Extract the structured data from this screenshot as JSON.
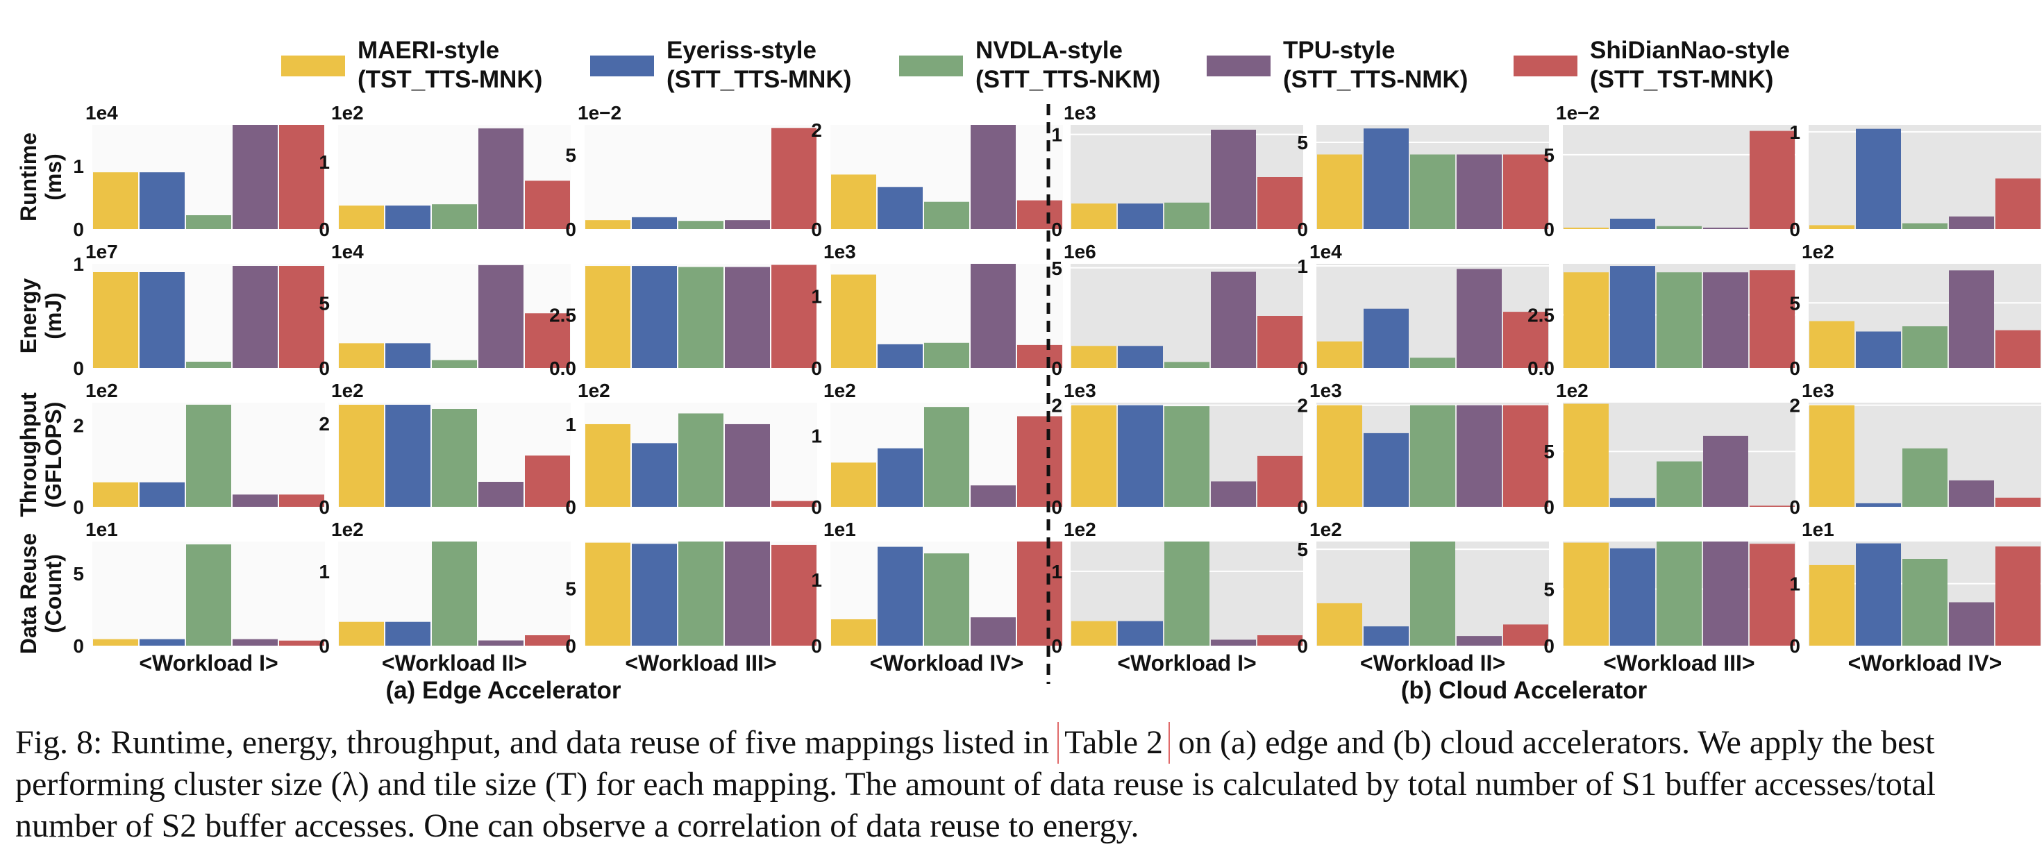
{
  "legend": [
    {
      "name": "MAERI-style",
      "sub": "(TST_TTS-MNK)",
      "color": "#ecc246"
    },
    {
      "name": "Eyeriss-style",
      "sub": "(STT_TTS-MNK)",
      "color": "#4b6aa8"
    },
    {
      "name": "NVDLA-style",
      "sub": "(STT_TTS-NKM)",
      "color": "#7ea77b"
    },
    {
      "name": "TPU-style",
      "sub": "(STT_TTS-NMK)",
      "color": "#7d6084"
    },
    {
      "name": "ShiDianNao-style",
      "sub": "(STT_TST-MNK)",
      "color": "#c45a5a"
    }
  ],
  "row_labels": [
    [
      "Runtime",
      "(ms)"
    ],
    [
      "Energy",
      "(mJ)"
    ],
    [
      "Throughput",
      "(GFLOPS)"
    ],
    [
      "Data Reuse",
      "(Count)"
    ]
  ],
  "workloads": [
    "<Workload I>",
    "<Workload II>",
    "<Workload III>",
    "<Workload IV>"
  ],
  "sections": [
    "(a) Edge Accelerator",
    "(b) Cloud Accelerator"
  ],
  "caption": {
    "before": "Fig. 8: Runtime, energy, throughput, and data reuse of five mappings listed in ",
    "ref": "Table 2",
    "after": " on (a) edge and (b) cloud accelerators. We apply the best performing cluster size (λ) and tile size (T) for each mapping. The amount of data reuse is calculated by total number of S1 buffer accesses/total number of S2 buffer accesses. One can observe a correlation of data reuse to energy."
  },
  "chart_data": [
    {
      "type": "bar",
      "section": "Edge",
      "metric": "Runtime (ms)",
      "workload": "<Workload I>",
      "exponent": "1e4",
      "ylim": [
        0,
        1.65
      ],
      "ticks": [
        {
          "v": 0,
          "l": "0"
        },
        {
          "v": 1,
          "l": "1"
        }
      ],
      "values": [
        0.9,
        0.9,
        0.22,
        1.65,
        1.65
      ]
    },
    {
      "type": "bar",
      "section": "Edge",
      "metric": "Runtime (ms)",
      "workload": "<Workload II>",
      "exponent": "1e2",
      "ylim": [
        0,
        1.55
      ],
      "ticks": [
        {
          "v": 0,
          "l": "0"
        },
        {
          "v": 1,
          "l": "1"
        }
      ],
      "values": [
        0.35,
        0.35,
        0.37,
        1.5,
        0.72
      ]
    },
    {
      "type": "bar",
      "section": "Edge",
      "metric": "Runtime (ms)",
      "workload": "<Workload III>",
      "exponent": "1e−2",
      "ylim": [
        0,
        7
      ],
      "ticks": [
        {
          "v": 0,
          "l": "0"
        },
        {
          "v": 5,
          "l": "5"
        }
      ],
      "values": [
        0.6,
        0.8,
        0.55,
        0.6,
        6.8
      ]
    },
    {
      "type": "bar",
      "section": "Edge",
      "metric": "Runtime (ms)",
      "workload": "<Workload IV>",
      "exponent": "",
      "ylim": [
        0,
        2.1
      ],
      "ticks": [
        {
          "v": 0,
          "l": "0"
        },
        {
          "v": 2,
          "l": "2"
        }
      ],
      "values": [
        1.1,
        0.85,
        0.55,
        2.1,
        0.58
      ]
    },
    {
      "type": "bar",
      "section": "Cloud",
      "metric": "Runtime (ms)",
      "workload": "<Workload I>",
      "exponent": "1e3",
      "ylim": [
        0,
        1.1
      ],
      "ticks": [
        {
          "v": 0,
          "l": "0"
        },
        {
          "v": 1,
          "l": "1"
        }
      ],
      "values": [
        0.27,
        0.27,
        0.28,
        1.05,
        0.55
      ]
    },
    {
      "type": "bar",
      "section": "Cloud",
      "metric": "Runtime (ms)",
      "workload": "<Workload II>",
      "exponent": "",
      "ylim": [
        0,
        6
      ],
      "ticks": [
        {
          "v": 0,
          "l": "0"
        },
        {
          "v": 5,
          "l": "5"
        }
      ],
      "values": [
        4.3,
        5.8,
        4.3,
        4.3,
        4.3
      ]
    },
    {
      "type": "bar",
      "section": "Cloud",
      "metric": "Runtime (ms)",
      "workload": "<Workload III>",
      "exponent": "1e−2",
      "ylim": [
        0,
        7
      ],
      "ticks": [
        {
          "v": 0,
          "l": "0"
        },
        {
          "v": 5,
          "l": "5"
        }
      ],
      "values": [
        0.1,
        0.7,
        0.2,
        0.1,
        6.6
      ]
    },
    {
      "type": "bar",
      "section": "Cloud",
      "metric": "Runtime (ms)",
      "workload": "<Workload IV>",
      "exponent": "",
      "ylim": [
        0,
        1.07
      ],
      "ticks": [
        {
          "v": 0,
          "l": "0"
        },
        {
          "v": 1,
          "l": "1"
        }
      ],
      "values": [
        0.04,
        1.03,
        0.06,
        0.13,
        0.52
      ]
    },
    {
      "type": "bar",
      "section": "Edge",
      "metric": "Energy (mJ)",
      "workload": "<Workload I>",
      "exponent": "1e7",
      "ylim": [
        0,
        1.0
      ],
      "ticks": [
        {
          "v": 0,
          "l": "0"
        },
        {
          "v": 1,
          "l": "1"
        }
      ],
      "values": [
        0.92,
        0.92,
        0.06,
        0.98,
        0.98
      ]
    },
    {
      "type": "bar",
      "section": "Edge",
      "metric": "Energy (mJ)",
      "workload": "<Workload II>",
      "exponent": "1e4",
      "ylim": [
        0,
        8
      ],
      "ticks": [
        {
          "v": 0,
          "l": "0"
        },
        {
          "v": 5,
          "l": "5"
        }
      ],
      "values": [
        1.9,
        1.9,
        0.6,
        7.9,
        4.2
      ]
    },
    {
      "type": "bar",
      "section": "Edge",
      "metric": "Energy (mJ)",
      "workload": "<Workload III>",
      "exponent": "",
      "ylim": [
        0,
        4.9
      ],
      "ticks": [
        {
          "v": 0,
          "l": "0.0"
        },
        {
          "v": 2.5,
          "l": "2.5"
        }
      ],
      "values": [
        4.8,
        4.8,
        4.75,
        4.75,
        4.85
      ]
    },
    {
      "type": "bar",
      "section": "Edge",
      "metric": "Energy (mJ)",
      "workload": "<Workload IV>",
      "exponent": "1e3",
      "ylim": [
        0,
        1.45
      ],
      "ticks": [
        {
          "v": 0,
          "l": "0"
        },
        {
          "v": 1,
          "l": "1"
        }
      ],
      "values": [
        1.3,
        0.33,
        0.35,
        1.45,
        0.32
      ]
    },
    {
      "type": "bar",
      "section": "Cloud",
      "metric": "Energy (mJ)",
      "workload": "<Workload I>",
      "exponent": "1e6",
      "ylim": [
        0,
        5.2
      ],
      "ticks": [
        {
          "v": 0,
          "l": "0"
        },
        {
          "v": 5,
          "l": "5"
        }
      ],
      "values": [
        1.1,
        1.1,
        0.3,
        4.8,
        2.6
      ]
    },
    {
      "type": "bar",
      "section": "Cloud",
      "metric": "Energy (mJ)",
      "workload": "<Workload II>",
      "exponent": "1e4",
      "ylim": [
        0,
        1.02
      ],
      "ticks": [
        {
          "v": 0,
          "l": "0"
        },
        {
          "v": 1,
          "l": "1"
        }
      ],
      "values": [
        0.26,
        0.58,
        0.1,
        0.97,
        0.55
      ]
    },
    {
      "type": "bar",
      "section": "Cloud",
      "metric": "Energy (mJ)",
      "workload": "<Workload III>",
      "exponent": "",
      "ylim": [
        0,
        4.9
      ],
      "ticks": [
        {
          "v": 0,
          "l": "0.0"
        },
        {
          "v": 2.5,
          "l": "2.5"
        }
      ],
      "values": [
        4.5,
        4.8,
        4.5,
        4.5,
        4.6
      ]
    },
    {
      "type": "bar",
      "section": "Cloud",
      "metric": "Energy (mJ)",
      "workload": "<Workload IV>",
      "exponent": "1e2",
      "ylim": [
        0,
        8
      ],
      "ticks": [
        {
          "v": 0,
          "l": "0"
        },
        {
          "v": 5,
          "l": "5"
        }
      ],
      "values": [
        3.6,
        2.8,
        3.2,
        7.5,
        2.9
      ]
    },
    {
      "type": "bar",
      "section": "Edge",
      "metric": "Throughput (GFLOPS)",
      "workload": "<Workload I>",
      "exponent": "1e2",
      "ylim": [
        0,
        2.55
      ],
      "ticks": [
        {
          "v": 0,
          "l": "0"
        },
        {
          "v": 2,
          "l": "2"
        }
      ],
      "values": [
        0.6,
        0.6,
        2.5,
        0.3,
        0.3
      ]
    },
    {
      "type": "bar",
      "section": "Edge",
      "metric": "Throughput (GFLOPS)",
      "workload": "<Workload II>",
      "exponent": "1e2",
      "ylim": [
        0,
        2.5
      ],
      "ticks": [
        {
          "v": 0,
          "l": "0"
        },
        {
          "v": 2,
          "l": "2"
        }
      ],
      "values": [
        2.45,
        2.45,
        2.35,
        0.6,
        1.23
      ]
    },
    {
      "type": "bar",
      "section": "Edge",
      "metric": "Throughput (GFLOPS)",
      "workload": "<Workload III>",
      "exponent": "1e2",
      "ylim": [
        0,
        1.26
      ],
      "ticks": [
        {
          "v": 0,
          "l": "0"
        },
        {
          "v": 1,
          "l": "1"
        }
      ],
      "values": [
        1.0,
        0.77,
        1.13,
        1.0,
        0.07
      ]
    },
    {
      "type": "bar",
      "section": "Edge",
      "metric": "Throughput (GFLOPS)",
      "workload": "<Workload IV>",
      "exponent": "1e2",
      "ylim": [
        0,
        1.46
      ],
      "ticks": [
        {
          "v": 0,
          "l": "0"
        },
        {
          "v": 1,
          "l": "1"
        }
      ],
      "values": [
        0.62,
        0.82,
        1.4,
        0.3,
        1.27
      ]
    },
    {
      "type": "bar",
      "section": "Cloud",
      "metric": "Throughput (GFLOPS)",
      "workload": "<Workload I>",
      "exponent": "1e3",
      "ylim": [
        0,
        2.05
      ],
      "ticks": [
        {
          "v": 0,
          "l": "0"
        },
        {
          "v": 2,
          "l": "2"
        }
      ],
      "values": [
        2.0,
        2.0,
        1.98,
        0.5,
        1.0
      ]
    },
    {
      "type": "bar",
      "section": "Cloud",
      "metric": "Throughput (GFLOPS)",
      "workload": "<Workload II>",
      "exponent": "1e3",
      "ylim": [
        0,
        2.05
      ],
      "ticks": [
        {
          "v": 0,
          "l": "0"
        },
        {
          "v": 2,
          "l": "2"
        }
      ],
      "values": [
        2.0,
        1.45,
        2.0,
        2.0,
        2.0
      ]
    },
    {
      "type": "bar",
      "section": "Cloud",
      "metric": "Throughput (GFLOPS)",
      "workload": "<Workload III>",
      "exponent": "1e2",
      "ylim": [
        0,
        9.4
      ],
      "ticks": [
        {
          "v": 0,
          "l": "0"
        },
        {
          "v": 5,
          "l": "5"
        }
      ],
      "values": [
        9.3,
        0.8,
        4.1,
        6.4,
        0.1
      ]
    },
    {
      "type": "bar",
      "section": "Cloud",
      "metric": "Throughput (GFLOPS)",
      "workload": "<Workload IV>",
      "exponent": "1e3",
      "ylim": [
        0,
        2.05
      ],
      "ticks": [
        {
          "v": 0,
          "l": "0"
        },
        {
          "v": 2,
          "l": "2"
        }
      ],
      "values": [
        2.0,
        0.07,
        1.15,
        0.52,
        0.18
      ]
    },
    {
      "type": "bar",
      "section": "Edge",
      "metric": "Data Reuse (Count)",
      "workload": "<Workload I>",
      "exponent": "1e1",
      "ylim": [
        0,
        7.2
      ],
      "ticks": [
        {
          "v": 0,
          "l": "0"
        },
        {
          "v": 5,
          "l": "5"
        }
      ],
      "values": [
        0.45,
        0.45,
        7.0,
        0.45,
        0.35
      ]
    },
    {
      "type": "bar",
      "section": "Edge",
      "metric": "Data Reuse (Count)",
      "workload": "<Workload II>",
      "exponent": "1e2",
      "ylim": [
        0,
        1.4
      ],
      "ticks": [
        {
          "v": 0,
          "l": "0"
        },
        {
          "v": 1,
          "l": "1"
        }
      ],
      "values": [
        0.32,
        0.32,
        1.4,
        0.07,
        0.14
      ]
    },
    {
      "type": "bar",
      "section": "Edge",
      "metric": "Data Reuse (Count)",
      "workload": "<Workload III>",
      "exponent": "",
      "ylim": [
        0,
        9.1
      ],
      "ticks": [
        {
          "v": 0,
          "l": "0"
        },
        {
          "v": 5,
          "l": "5"
        }
      ],
      "values": [
        9.0,
        8.9,
        9.1,
        9.1,
        8.8
      ]
    },
    {
      "type": "bar",
      "section": "Edge",
      "metric": "Data Reuse (Count)",
      "workload": "<Workload IV>",
      "exponent": "1e1",
      "ylim": [
        0,
        1.58
      ],
      "ticks": [
        {
          "v": 0,
          "l": "0"
        },
        {
          "v": 1,
          "l": "1"
        }
      ],
      "values": [
        0.4,
        1.5,
        1.4,
        0.43,
        1.58
      ]
    },
    {
      "type": "bar",
      "section": "Cloud",
      "metric": "Data Reuse (Count)",
      "workload": "<Workload I>",
      "exponent": "1e2",
      "ylim": [
        0,
        1.4
      ],
      "ticks": [
        {
          "v": 0,
          "l": "0"
        },
        {
          "v": 1,
          "l": "1"
        }
      ],
      "values": [
        0.33,
        0.33,
        1.4,
        0.08,
        0.14
      ]
    },
    {
      "type": "bar",
      "section": "Cloud",
      "metric": "Data Reuse (Count)",
      "workload": "<Workload II>",
      "exponent": "1e2",
      "ylim": [
        0,
        5.4
      ],
      "ticks": [
        {
          "v": 0,
          "l": "0"
        },
        {
          "v": 5,
          "l": "5"
        }
      ],
      "values": [
        2.2,
        1.0,
        5.4,
        0.5,
        1.1
      ]
    },
    {
      "type": "bar",
      "section": "Cloud",
      "metric": "Data Reuse (Count)",
      "workload": "<Workload III>",
      "exponent": "",
      "ylim": [
        0,
        9.2
      ],
      "ticks": [
        {
          "v": 0,
          "l": "0"
        },
        {
          "v": 5,
          "l": "5"
        }
      ],
      "values": [
        9.1,
        8.6,
        9.2,
        9.2,
        9.0
      ]
    },
    {
      "type": "bar",
      "section": "Cloud",
      "metric": "Data Reuse (Count)",
      "workload": "<Workload IV>",
      "exponent": "1e1",
      "ylim": [
        0,
        1.68
      ],
      "ticks": [
        {
          "v": 0,
          "l": "0"
        },
        {
          "v": 1,
          "l": "1"
        }
      ],
      "values": [
        1.3,
        1.65,
        1.4,
        0.7,
        1.6
      ]
    }
  ]
}
